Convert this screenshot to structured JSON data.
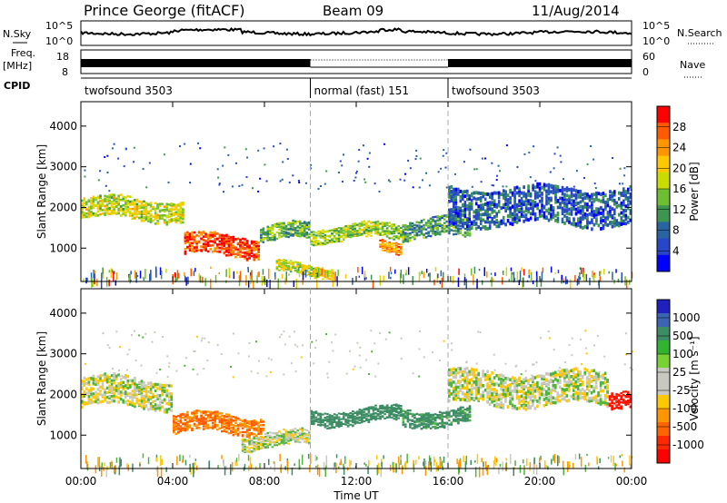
{
  "header": {
    "station": "Prince George (fitACF)",
    "beam": "Beam 09",
    "date": "11/Aug/2014"
  },
  "strips": {
    "nsky_label": "N.Sky",
    "nsky_ticks": [
      "10^5",
      "10^0"
    ],
    "nsearch_label": "N.Search",
    "freq_label_1": "Freq.",
    "freq_label_2": "[MHz]",
    "freq_ticks": [
      "18",
      "8"
    ],
    "nave_ticks": [
      "60",
      "0"
    ],
    "nave_label": "Nave",
    "cpid_label": "CPID",
    "cpid_segments": [
      {
        "label": "twofsound 3503",
        "start_h": 0,
        "end_h": 10
      },
      {
        "label": "normal (fast) 151",
        "start_h": 10,
        "end_h": 16
      },
      {
        "label": "twofsound 3503",
        "start_h": 16,
        "end_h": 24
      }
    ]
  },
  "power_colorbar": {
    "title": "Power [dB]",
    "ticks": [
      "28",
      "24",
      "20",
      "16",
      "12",
      "8",
      "4"
    ],
    "colors": [
      "#ff0000",
      "#ff5a00",
      "#ff9600",
      "#ffc800",
      "#c8dc00",
      "#6ebe32",
      "#3c9650",
      "#2864a0",
      "#2846c8",
      "#0000ff"
    ]
  },
  "velocity_colorbar": {
    "title": "Velocity [m s⁻¹]",
    "ticks": [
      "1000",
      "500",
      "100",
      "25",
      "-25",
      "-100",
      "-500",
      "-1000"
    ],
    "colors": [
      "#2020c0",
      "#3c64b4",
      "#3c8c64",
      "#32b432",
      "#78d232",
      "#c8c8c0",
      "#c8c8c0",
      "#ffc800",
      "#ff9600",
      "#ff6400",
      "#ff2800",
      "#ff0000"
    ]
  },
  "chart_data": [
    {
      "type": "heatmap",
      "title": "Power",
      "ylabel": "Slant Range [km]",
      "xlabel": "",
      "xlim_h": [
        0,
        24
      ],
      "ylim": [
        180,
        4600
      ],
      "yticks": [
        1000,
        2000,
        3000,
        4000
      ],
      "features": [
        {
          "t0": 0,
          "t1": 4.5,
          "r_center": 2000,
          "r_width": 500,
          "value": 18
        },
        {
          "t0": 4.5,
          "t1": 7.8,
          "r_center": 1100,
          "r_width": 500,
          "value": 28
        },
        {
          "t0": 7.8,
          "t1": 10,
          "r_center": 1400,
          "r_width": 400,
          "value": 14
        },
        {
          "t0": 8.5,
          "t1": 11,
          "r_center": 500,
          "r_width": 250,
          "value": 18
        },
        {
          "t0": 10,
          "t1": 14,
          "r_center": 1400,
          "r_width": 350,
          "value": 16
        },
        {
          "t0": 13,
          "t1": 14,
          "r_center": 1100,
          "r_width": 250,
          "value": 24
        },
        {
          "t0": 14,
          "t1": 17,
          "r_center": 1500,
          "r_width": 450,
          "value": 12
        },
        {
          "t0": 16,
          "t1": 24,
          "r_center": 2100,
          "r_width": 900,
          "value": 8
        }
      ]
    },
    {
      "type": "heatmap",
      "title": "Velocity",
      "ylabel": "Slant Range [km]",
      "xlabel": "Time UT",
      "xlim_h": [
        0,
        24
      ],
      "ylim": [
        180,
        4600
      ],
      "yticks": [
        1000,
        2000,
        3000,
        4000
      ],
      "xticks": [
        "00:00",
        "04:00",
        "08:00",
        "12:00",
        "16:00",
        "20:00",
        "00:00"
      ],
      "features": [
        {
          "t0": 0,
          "t1": 4,
          "r_center": 2100,
          "r_width": 700,
          "value": 0
        },
        {
          "t0": 4,
          "t1": 8,
          "r_center": 1300,
          "r_width": 450,
          "value": -300
        },
        {
          "t0": 7,
          "t1": 10,
          "r_center": 900,
          "r_width": 350,
          "value": 0
        },
        {
          "t0": 10,
          "t1": 14,
          "r_center": 1500,
          "r_width": 350,
          "value": 200
        },
        {
          "t0": 14,
          "t1": 17,
          "r_center": 1500,
          "r_width": 400,
          "value": 150
        },
        {
          "t0": 16,
          "t1": 23,
          "r_center": 2200,
          "r_width": 800,
          "value": 0
        },
        {
          "t0": 23,
          "t1": 24,
          "r_center": 2000,
          "r_width": 400,
          "value": -900
        }
      ]
    }
  ]
}
